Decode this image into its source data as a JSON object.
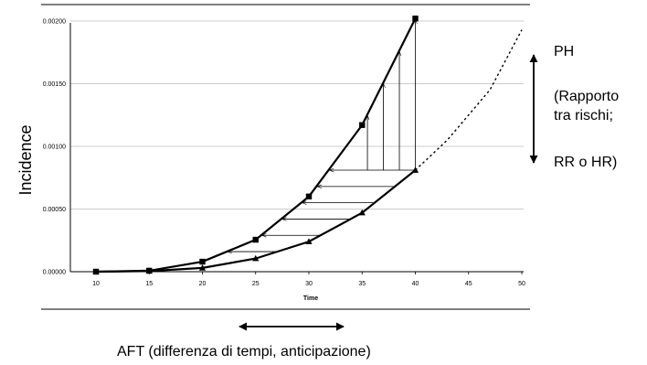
{
  "chart_data": {
    "type": "line",
    "xlabel": "Time",
    "ylabel": "Incidence",
    "xlim": [
      10,
      50
    ],
    "ylim": [
      0,
      0.002
    ],
    "x_ticks": [
      "10",
      "15",
      "20",
      "25",
      "30",
      "35",
      "40",
      "45",
      "50"
    ],
    "y_ticks": [
      "0.00000",
      "0.00050",
      "0.00100",
      "0.00150",
      "0.00200"
    ],
    "grid": "horizontal",
    "series": [
      {
        "marker": "square",
        "x": [
          10,
          15,
          20,
          25,
          30,
          35,
          40
        ],
        "y": [
          0.0,
          8e-06,
          8e-05,
          0.000255,
          0.0006,
          0.00117,
          0.00202
        ]
      },
      {
        "marker": "triangle",
        "x": [
          10,
          15,
          20,
          25,
          30,
          35,
          40
        ],
        "y": [
          0.0,
          5e-06,
          3e-05,
          0.000105,
          0.00024,
          0.00047,
          0.00081
        ]
      }
    ],
    "extrapolation": {
      "style": "dotted",
      "x": [
        40,
        43,
        47,
        50
      ],
      "y": [
        0.00081,
        0.00105,
        0.00145,
        0.00193
      ]
    }
  },
  "annotations": {
    "ph_label": "PH",
    "ph_desc_line1": "(Rapporto",
    "ph_desc_line2": "tra rischi;",
    "ph_desc_line3": "RR o HR)",
    "aft_label": "AFT  (differenza di tempi, anticipazione)"
  }
}
